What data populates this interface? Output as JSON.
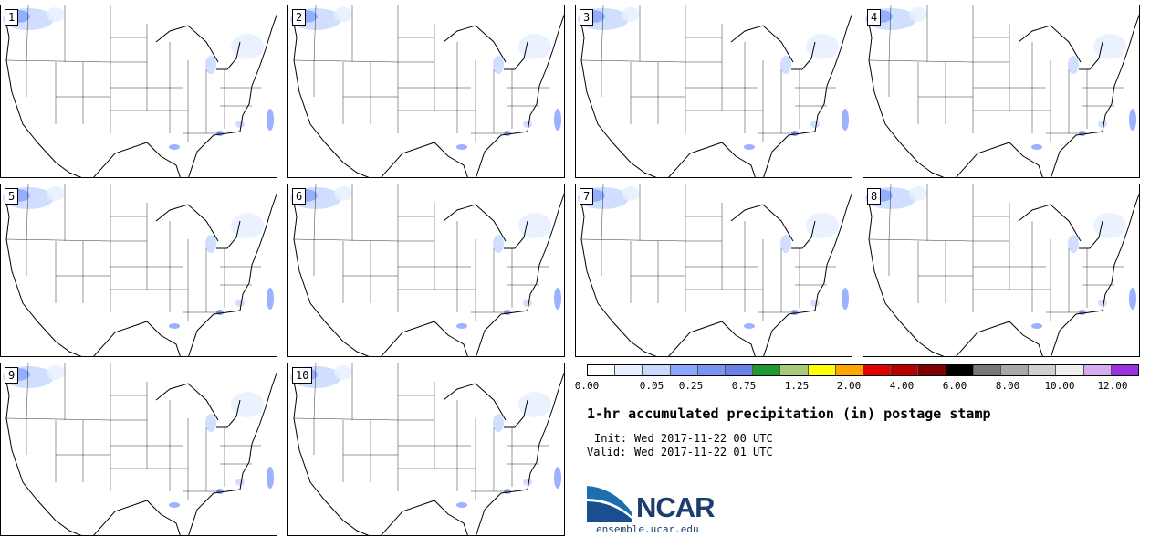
{
  "panels": [
    {
      "label": "1"
    },
    {
      "label": "2"
    },
    {
      "label": "3"
    },
    {
      "label": "4"
    },
    {
      "label": "5"
    },
    {
      "label": "6"
    },
    {
      "label": "7"
    },
    {
      "label": "8"
    },
    {
      "label": "9"
    },
    {
      "label": "10"
    }
  ],
  "legend": {
    "colors": [
      "#ffffff",
      "#e8f0ff",
      "#c8d8ff",
      "#8aa6ff",
      "#7b93f2",
      "#6a82e6",
      "#1a9a30",
      "#a6cc79",
      "#ffff00",
      "#ffa500",
      "#e00000",
      "#b80000",
      "#800000",
      "#000000",
      "#777777",
      "#a8a8a8",
      "#cfcfcf",
      "#eeeeee",
      "#d8aaf2",
      "#9b30e0"
    ],
    "ticks": [
      "0.00",
      "0.05",
      "0.25",
      "0.75",
      "1.25",
      "2.00",
      "4.00",
      "6.00",
      "8.00",
      "10.00",
      "12.00"
    ]
  },
  "title": "1-hr accumulated precipitation (in) postage stamp",
  "init_label": "Init:",
  "init_value": "Wed 2017-11-22 00 UTC",
  "valid_label": "Valid:",
  "valid_value": "Wed 2017-11-22 01 UTC",
  "logo": {
    "text": "NCAR",
    "site": "ensemble.ucar.edu"
  }
}
